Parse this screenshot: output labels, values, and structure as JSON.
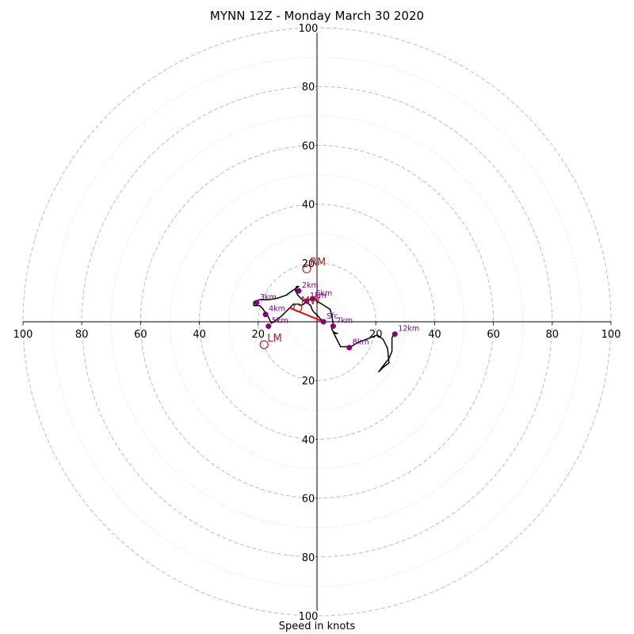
{
  "chart_data": {
    "type": "scatter",
    "title": "MYNN 12Z - Monday March 30 2020",
    "xlabel": "Speed in knots",
    "ylabel": "",
    "xlim": [
      -100,
      100
    ],
    "ylim": [
      -100,
      100
    ],
    "grid": {
      "major_rings": [
        20,
        40,
        60,
        80,
        100
      ],
      "minor_rings": [
        10,
        30,
        50,
        70,
        90
      ]
    },
    "x_tick_labels": [
      "100",
      "80",
      "60",
      "40",
      "20",
      "",
      "20",
      "40",
      "60",
      "80",
      "100"
    ],
    "y_tick_labels": [
      "100",
      "80",
      "60",
      "40",
      "20",
      "",
      "20",
      "40",
      "60",
      "80",
      "100"
    ],
    "colors": {
      "hodograph": "#000000",
      "height_markers": "#800080",
      "storm_motion": "#b22222",
      "shear_vector": "#ff0000",
      "grid": "#bbbbbb"
    },
    "hodograph": [
      [
        2.2,
        0
      ],
      [
        1.5,
        0.6
      ],
      [
        0.3,
        2.0
      ],
      [
        -1.0,
        3.2
      ],
      [
        -1.6,
        4.0
      ],
      [
        -2.2,
        5.6
      ],
      [
        -3.5,
        6.5
      ],
      [
        -5.0,
        7.5
      ],
      [
        -6.5,
        9.0
      ],
      [
        -7.3,
        10.5
      ],
      [
        -7.0,
        12.0
      ],
      [
        -6.2,
        12.0
      ],
      [
        -8.0,
        10.8
      ],
      [
        -10.5,
        9.0
      ],
      [
        -13.5,
        8.0
      ],
      [
        -16.5,
        7.5
      ],
      [
        -19.5,
        7.5
      ],
      [
        -21.5,
        6.8
      ],
      [
        -21.5,
        5.5
      ],
      [
        -19.5,
        5.5
      ],
      [
        -18.5,
        4.5
      ],
      [
        -17.5,
        3.0
      ],
      [
        -16.5,
        1.5
      ],
      [
        -16.0,
        0.5
      ],
      [
        -15.5,
        -0.5
      ],
      [
        -14.0,
        0.5
      ],
      [
        -12.0,
        2.0
      ],
      [
        -10.5,
        3.5
      ],
      [
        -9.5,
        4.5
      ],
      [
        -8.0,
        6.0
      ],
      [
        -6.5,
        6.0
      ],
      [
        -5.5,
        5.5
      ],
      [
        -4.5,
        6.0
      ],
      [
        -3.5,
        7.0
      ],
      [
        -1.5,
        8.0
      ],
      [
        4.5,
        4.2
      ],
      [
        5.0,
        2.0
      ],
      [
        5.5,
        -0.5
      ],
      [
        5.0,
        -2.5
      ],
      [
        6.0,
        -4.0
      ],
      [
        7.0,
        -4.0
      ],
      [
        5.5,
        -3.5
      ],
      [
        8.0,
        -8.5
      ],
      [
        11.5,
        -8.5
      ],
      [
        14.0,
        -7.0
      ],
      [
        18.0,
        -5.5
      ],
      [
        20.5,
        -4.5
      ],
      [
        22.5,
        -6.0
      ],
      [
        24.0,
        -9.0
      ],
      [
        24.5,
        -14.0
      ],
      [
        22.5,
        -15.5
      ],
      [
        21.0,
        -17.0
      ],
      [
        22.5,
        -15.0
      ],
      [
        24.5,
        -12.5
      ],
      [
        25.5,
        -10.0
      ],
      [
        25.5,
        -5.5
      ],
      [
        26.0,
        -4.2
      ],
      [
        27.0,
        -4.2
      ]
    ],
    "height_markers": [
      {
        "label": "Sfc",
        "u": 2.2,
        "v": 0
      },
      {
        "label": "1km",
        "u": -3.5,
        "v": 7.0
      },
      {
        "label": "2km",
        "u": -6.2,
        "v": 10.5
      },
      {
        "label": "3km",
        "u": -20.5,
        "v": 6.5
      },
      {
        "label": "4km",
        "u": -17.5,
        "v": 2.5
      },
      {
        "label": "5km",
        "u": -16.5,
        "v": -1.5
      },
      {
        "label": "6km",
        "u": -1.5,
        "v": 7.8
      },
      {
        "label": "7km",
        "u": 5.5,
        "v": -1.5
      },
      {
        "label": "8km",
        "u": 11.0,
        "v": -8.8
      },
      {
        "label": "12km",
        "u": 26.5,
        "v": -4.2
      }
    ],
    "storm_motion": [
      {
        "label": "RM",
        "u": -3.5,
        "v": 18.0
      },
      {
        "label": "LM",
        "u": -18.0,
        "v": -7.8
      },
      {
        "label": "MW",
        "u": -6.5,
        "v": 4.8
      }
    ],
    "shear_vector": [
      [
        2.2,
        0
      ],
      [
        -9.5,
        4.8
      ]
    ]
  }
}
